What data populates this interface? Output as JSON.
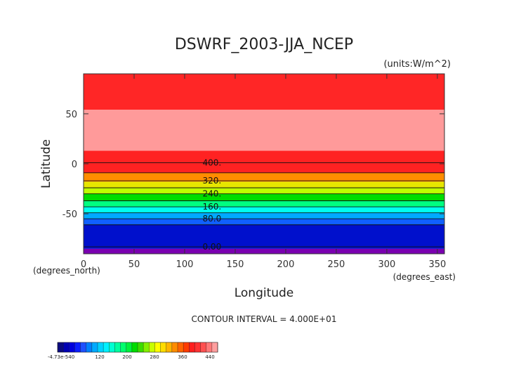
{
  "chart_data": {
    "type": "heatmap",
    "title": "DSWRF_2003-JJA_NCEP",
    "units_label": "(units:W/m^2)",
    "xlabel": "Longitude",
    "ylabel": "Latitude",
    "x_units": "(degrees_east)",
    "y_units": "(degrees_north)",
    "xlim": [
      0,
      357
    ],
    "ylim": [
      -90,
      90
    ],
    "x_ticks": [
      0,
      50,
      100,
      150,
      200,
      250,
      300,
      350
    ],
    "y_ticks": [
      50,
      0,
      -50
    ],
    "contour_interval_text": "CONTOUR INTERVAL = 4.000E+01",
    "bands": [
      {
        "lat_from": 54,
        "lat_to": 90,
        "color": "#ff2626"
      },
      {
        "lat_from": 13,
        "lat_to": 54,
        "color": "#ff9a9a"
      },
      {
        "lat_from": 1,
        "lat_to": 13,
        "color": "#ff2222"
      },
      {
        "lat_from": -9,
        "lat_to": 1,
        "color": "#ff2222"
      },
      {
        "lat_from": -18,
        "lat_to": -9,
        "color": "#ff8c00"
      },
      {
        "lat_from": -24,
        "lat_to": -18,
        "color": "#e6e600"
      },
      {
        "lat_from": -30,
        "lat_to": -24,
        "color": "#bfff00"
      },
      {
        "lat_from": -37,
        "lat_to": -30,
        "color": "#00dd00"
      },
      {
        "lat_from": -43,
        "lat_to": -37,
        "color": "#00ff80"
      },
      {
        "lat_from": -49,
        "lat_to": -43,
        "color": "#00ffee"
      },
      {
        "lat_from": -55,
        "lat_to": -49,
        "color": "#00aaff"
      },
      {
        "lat_from": -61,
        "lat_to": -55,
        "color": "#1060ff"
      },
      {
        "lat_from": -85,
        "lat_to": -61,
        "color": "#0010cc"
      },
      {
        "lat_from": -90,
        "lat_to": -85,
        "color": "#7a00b0"
      }
    ],
    "contour_lines": [
      {
        "lat": 1,
        "label": "400."
      },
      {
        "lat": -9
      },
      {
        "lat": -17,
        "label": "320."
      },
      {
        "lat": -24
      },
      {
        "lat": -30,
        "label": "240."
      },
      {
        "lat": -37
      },
      {
        "lat": -43,
        "label": "160."
      },
      {
        "lat": -49
      },
      {
        "lat": -55,
        "label": "80.0"
      },
      {
        "lat": -61
      },
      {
        "lat": -83,
        "label": "0.00"
      }
    ],
    "colorbar": {
      "colors": [
        "#0a0a80",
        "#0000b4",
        "#0000dc",
        "#0a1eff",
        "#1e50ff",
        "#0080ff",
        "#00aaff",
        "#00d2ff",
        "#00f0ff",
        "#00ffd2",
        "#00ffa0",
        "#00ff6e",
        "#00f03c",
        "#00dc00",
        "#3cdc00",
        "#82f000",
        "#c8ff00",
        "#ffff00",
        "#ffdc00",
        "#ffb400",
        "#ff8c00",
        "#ff6400",
        "#ff3c00",
        "#ff1e1e",
        "#ff3232",
        "#ff5050",
        "#ff7878",
        "#ff9e9e"
      ],
      "tick_labels": [
        "-4.73e-540",
        "120",
        "200",
        "280",
        "360",
        "440"
      ]
    }
  }
}
